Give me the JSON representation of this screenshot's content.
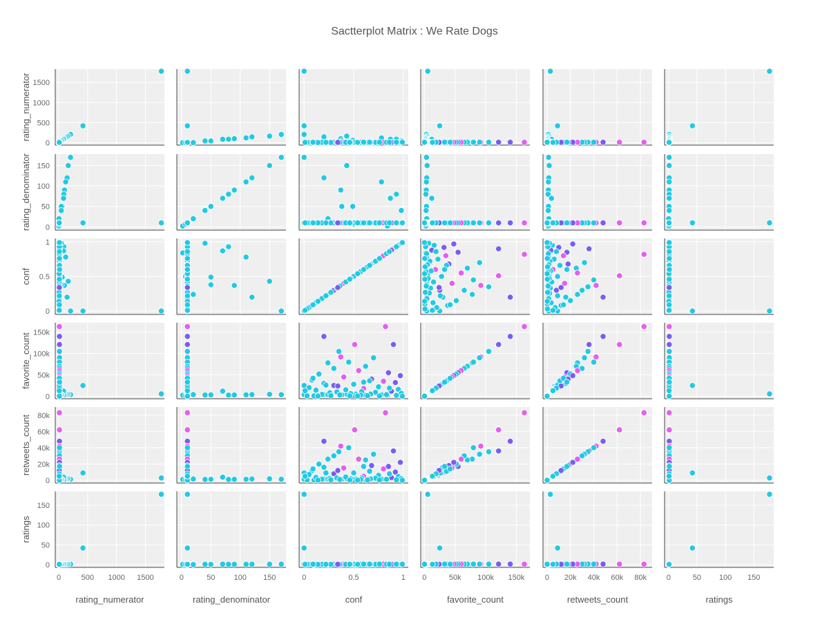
{
  "chart_data": {
    "type": "scatter",
    "title": "Sactterplot Matrix : We Rate Dogs",
    "variables": [
      {
        "key": "rating_numerator",
        "label": "rating_numerator",
        "range": [
          -60,
          1830
        ],
        "ticks": [
          0,
          500,
          1000,
          1500
        ],
        "tick_labels": [
          "0",
          "500",
          "1000",
          "1500"
        ]
      },
      {
        "key": "rating_denominator",
        "label": "rating_denominator",
        "range": [
          -8,
          178
        ],
        "ticks": [
          0,
          50,
          100,
          150
        ],
        "tick_labels": [
          "0",
          "50",
          "100",
          "150"
        ]
      },
      {
        "key": "conf",
        "label": "conf",
        "range": [
          -0.05,
          1.05
        ],
        "ticks": [
          0,
          0.5,
          1
        ],
        "tick_labels": [
          "0",
          "0.5",
          "1"
        ]
      },
      {
        "key": "favorite_count",
        "label": "favorite_count",
        "range": [
          -6000,
          172000
        ],
        "ticks": [
          0,
          50000,
          100000,
          150000
        ],
        "tick_labels": [
          "0",
          "50k",
          "100k",
          "150k"
        ]
      },
      {
        "key": "retweets_count",
        "label": "retweets_count",
        "range": [
          -3500,
          90000
        ],
        "ticks": [
          0,
          20000,
          40000,
          60000,
          80000
        ],
        "tick_labels": [
          "0",
          "20k",
          "40k",
          "60k",
          "80k"
        ]
      },
      {
        "key": "ratings",
        "label": "ratings",
        "range": [
          -7,
          185
        ],
        "ticks": [
          0,
          50,
          100,
          150
        ],
        "tick_labels": [
          "0",
          "50",
          "100",
          "150"
        ]
      }
    ],
    "colors": {
      "cyan": "#22c9e3",
      "purple": "#7b5cf0",
      "magenta": "#e45ef0"
    },
    "background": "#efefef",
    "grid": true,
    "records": [
      {
        "rating_numerator": 1776,
        "rating_denominator": 10,
        "conf": 0.0,
        "favorite_count": 5500,
        "retweets_count": 2800,
        "ratings": 177.6,
        "color": "cyan"
      },
      {
        "rating_numerator": 420,
        "rating_denominator": 10,
        "conf": 0.0,
        "favorite_count": 25000,
        "retweets_count": 9000,
        "ratings": 42,
        "color": "cyan"
      },
      {
        "rating_numerator": 204,
        "rating_denominator": 170,
        "conf": 0.0,
        "favorite_count": 3500,
        "retweets_count": 1300,
        "ratings": 1.2,
        "color": "cyan"
      },
      {
        "rating_numerator": 165,
        "rating_denominator": 150,
        "conf": 0.43,
        "favorite_count": 4500,
        "retweets_count": 1800,
        "ratings": 1.1,
        "color": "cyan"
      },
      {
        "rating_numerator": 144,
        "rating_denominator": 120,
        "conf": 0.2,
        "favorite_count": 3800,
        "retweets_count": 1500,
        "ratings": 1.2,
        "color": "cyan"
      },
      {
        "rating_numerator": 121,
        "rating_denominator": 110,
        "conf": 0.78,
        "favorite_count": 3200,
        "retweets_count": 1200,
        "ratings": 1.1,
        "color": "cyan"
      },
      {
        "rating_numerator": 99,
        "rating_denominator": 90,
        "conf": 0.37,
        "favorite_count": 3000,
        "retweets_count": 1100,
        "ratings": 1.1,
        "color": "cyan"
      },
      {
        "rating_numerator": 88,
        "rating_denominator": 80,
        "conf": 0.93,
        "favorite_count": 2500,
        "retweets_count": 900,
        "ratings": 1.1,
        "color": "cyan"
      },
      {
        "rating_numerator": 84,
        "rating_denominator": 70,
        "conf": 0.87,
        "favorite_count": 12000,
        "retweets_count": 3800,
        "ratings": 1.2,
        "color": "cyan"
      },
      {
        "rating_numerator": 60,
        "rating_denominator": 50,
        "conf": 0.49,
        "favorite_count": 3000,
        "retweets_count": 1000,
        "ratings": 1.2,
        "color": "cyan"
      },
      {
        "rating_numerator": 45,
        "rating_denominator": 50,
        "conf": 0.38,
        "favorite_count": 3300,
        "retweets_count": 1200,
        "ratings": 0.9,
        "color": "cyan"
      },
      {
        "rating_numerator": 44,
        "rating_denominator": 40,
        "conf": 0.98,
        "favorite_count": 2800,
        "retweets_count": 1000,
        "ratings": 1.1,
        "color": "cyan"
      },
      {
        "rating_numerator": 24,
        "rating_denominator": 11,
        "conf": 0.62,
        "favorite_count": 2200,
        "retweets_count": 700,
        "ratings": 2.2,
        "color": "cyan"
      },
      {
        "rating_numerator": 9,
        "rating_denominator": 11,
        "conf": 0.52,
        "favorite_count": 5000,
        "retweets_count": 1600,
        "ratings": 0.8,
        "color": "cyan"
      },
      {
        "rating_numerator": 4,
        "rating_denominator": 20,
        "conf": 0.24,
        "favorite_count": 3800,
        "retweets_count": 1500,
        "ratings": 0.2,
        "color": "cyan"
      },
      {
        "rating_numerator": 1,
        "rating_denominator": 2,
        "conf": 0.84,
        "favorite_count": 2200,
        "retweets_count": 900,
        "ratings": 0.5,
        "color": "cyan"
      },
      {
        "rating_numerator": 0,
        "rating_denominator": 10,
        "conf": 0.1,
        "favorite_count": 800,
        "retweets_count": 300,
        "ratings": 0,
        "color": "cyan"
      },
      {
        "rating_numerator": 5,
        "rating_denominator": 7,
        "conf": 0.5,
        "favorite_count": 1500,
        "retweets_count": 500,
        "ratings": 0.7,
        "color": "cyan"
      },
      {
        "rating_numerator": 12,
        "rating_denominator": 10,
        "conf": 0.82,
        "favorite_count": 163000,
        "retweets_count": 83000,
        "ratings": 1.2,
        "color": "magenta"
      },
      {
        "rating_numerator": 13,
        "rating_denominator": 10,
        "conf": 0.2,
        "favorite_count": 140000,
        "retweets_count": 48000,
        "ratings": 1.3,
        "color": "purple"
      },
      {
        "rating_numerator": 13,
        "rating_denominator": 10,
        "conf": 0.51,
        "favorite_count": 121000,
        "retweets_count": 62000,
        "ratings": 1.3,
        "color": "magenta"
      },
      {
        "rating_numerator": 13,
        "rating_denominator": 10,
        "conf": 0.9,
        "favorite_count": 121000,
        "retweets_count": 36000,
        "ratings": 1.3,
        "color": "purple"
      },
      {
        "rating_numerator": 13,
        "rating_denominator": 10,
        "conf": 0.37,
        "favorite_count": 92000,
        "retweets_count": 42000,
        "ratings": 1.3,
        "color": "magenta"
      },
      {
        "rating_numerator": 13,
        "rating_denominator": 10,
        "conf": 0.35,
        "favorite_count": 105000,
        "retweets_count": 35000,
        "ratings": 1.3,
        "color": "cyan"
      },
      {
        "rating_numerator": 14,
        "rating_denominator": 10,
        "conf": 0.7,
        "favorite_count": 90000,
        "retweets_count": 32000,
        "ratings": 1.4,
        "color": "cyan"
      },
      {
        "rating_numerator": 12,
        "rating_denominator": 10,
        "conf": 0.24,
        "favorite_count": 78000,
        "retweets_count": 26000,
        "ratings": 1.2,
        "color": "cyan"
      },
      {
        "rating_numerator": 13,
        "rating_denominator": 10,
        "conf": 0.45,
        "favorite_count": 80000,
        "retweets_count": 40000,
        "ratings": 1.3,
        "color": "cyan"
      },
      {
        "rating_numerator": 12,
        "rating_denominator": 10,
        "conf": 0.62,
        "favorite_count": 70000,
        "retweets_count": 25000,
        "ratings": 1.2,
        "color": "cyan"
      },
      {
        "rating_numerator": 13,
        "rating_denominator": 10,
        "conf": 0.3,
        "favorite_count": 65000,
        "retweets_count": 30000,
        "ratings": 1.3,
        "color": "cyan"
      },
      {
        "rating_numerator": 13,
        "rating_denominator": 10,
        "conf": 0.55,
        "favorite_count": 60000,
        "retweets_count": 26000,
        "ratings": 1.3,
        "color": "magenta"
      },
      {
        "rating_numerator": 13,
        "rating_denominator": 10,
        "conf": 0.85,
        "favorite_count": 55000,
        "retweets_count": 17000,
        "ratings": 1.3,
        "color": "purple"
      },
      {
        "rating_numerator": 12,
        "rating_denominator": 10,
        "conf": 0.15,
        "favorite_count": 52000,
        "retweets_count": 20000,
        "ratings": 1.2,
        "color": "cyan"
      },
      {
        "rating_numerator": 13,
        "rating_denominator": 10,
        "conf": 0.97,
        "favorite_count": 48000,
        "retweets_count": 22000,
        "ratings": 1.3,
        "color": "purple"
      },
      {
        "rating_numerator": 12,
        "rating_denominator": 10,
        "conf": 0.4,
        "favorite_count": 45000,
        "retweets_count": 15000,
        "ratings": 1.2,
        "color": "magenta"
      },
      {
        "rating_numerator": 11,
        "rating_denominator": 10,
        "conf": 0.68,
        "favorite_count": 40000,
        "retweets_count": 18000,
        "ratings": 1.1,
        "color": "purple"
      },
      {
        "rating_numerator": 12,
        "rating_denominator": 10,
        "conf": 0.08,
        "favorite_count": 38000,
        "retweets_count": 12000,
        "ratings": 1.2,
        "color": "cyan"
      },
      {
        "rating_numerator": 13,
        "rating_denominator": 10,
        "conf": 0.8,
        "favorite_count": 35000,
        "retweets_count": 14000,
        "ratings": 1.3,
        "color": "magenta"
      },
      {
        "rating_numerator": 12,
        "rating_denominator": 10,
        "conf": 0.92,
        "favorite_count": 32000,
        "retweets_count": 10000,
        "ratings": 1.2,
        "color": "purple"
      },
      {
        "rating_numerator": 11,
        "rating_denominator": 10,
        "conf": 0.2,
        "favorite_count": 30000,
        "retweets_count": 16000,
        "ratings": 1.1,
        "color": "cyan"
      },
      {
        "rating_numerator": 12,
        "rating_denominator": 10,
        "conf": 0.5,
        "favorite_count": 28000,
        "retweets_count": 9000,
        "ratings": 1.2,
        "color": "cyan"
      },
      {
        "rating_numerator": 10,
        "rating_denominator": 10,
        "conf": 0.3,
        "favorite_count": 25000,
        "retweets_count": 8000,
        "ratings": 1.0,
        "color": "purple"
      },
      {
        "rating_numerator": 12,
        "rating_denominator": 10,
        "conf": 0.75,
        "favorite_count": 22000,
        "retweets_count": 6000,
        "ratings": 1.2,
        "color": "cyan"
      },
      {
        "rating_numerator": 11,
        "rating_denominator": 10,
        "conf": 0.05,
        "favorite_count": 20000,
        "retweets_count": 7000,
        "ratings": 1.1,
        "color": "cyan"
      },
      {
        "rating_numerator": 12,
        "rating_denominator": 10,
        "conf": 0.6,
        "favorite_count": 18000,
        "retweets_count": 5000,
        "ratings": 1.2,
        "color": "magenta"
      },
      {
        "rating_numerator": 10,
        "rating_denominator": 10,
        "conf": 0.95,
        "favorite_count": 16000,
        "retweets_count": 4500,
        "ratings": 1.0,
        "color": "cyan"
      },
      {
        "rating_numerator": 11,
        "rating_denominator": 10,
        "conf": 0.42,
        "favorite_count": 15000,
        "retweets_count": 4000,
        "ratings": 1.1,
        "color": "cyan"
      },
      {
        "rating_numerator": 12,
        "rating_denominator": 10,
        "conf": 0.12,
        "favorite_count": 14000,
        "retweets_count": 3500,
        "ratings": 1.2,
        "color": "cyan"
      },
      {
        "rating_numerator": 10,
        "rating_denominator": 10,
        "conf": 0.88,
        "favorite_count": 12000,
        "retweets_count": 3200,
        "ratings": 1.0,
        "color": "purple"
      },
      {
        "rating_numerator": 11,
        "rating_denominator": 10,
        "conf": 0.58,
        "favorite_count": 11000,
        "retweets_count": 3000,
        "ratings": 1.1,
        "color": "cyan"
      },
      {
        "rating_numerator": 12,
        "rating_denominator": 10,
        "conf": 0.33,
        "favorite_count": 10000,
        "retweets_count": 2800,
        "ratings": 1.2,
        "color": "cyan"
      },
      {
        "rating_numerator": 9,
        "rating_denominator": 10,
        "conf": 0.72,
        "favorite_count": 9000,
        "retweets_count": 2500,
        "ratings": 0.9,
        "color": "cyan"
      },
      {
        "rating_numerator": 10,
        "rating_denominator": 10,
        "conf": 0.26,
        "favorite_count": 8000,
        "retweets_count": 2200,
        "ratings": 1.0,
        "color": "cyan"
      },
      {
        "rating_numerator": 11,
        "rating_denominator": 10,
        "conf": 0.98,
        "favorite_count": 7000,
        "retweets_count": 2000,
        "ratings": 1.1,
        "color": "cyan"
      },
      {
        "rating_numerator": 8,
        "rating_denominator": 10,
        "conf": 0.47,
        "favorite_count": 6000,
        "retweets_count": 1800,
        "ratings": 0.8,
        "color": "cyan"
      },
      {
        "rating_numerator": 10,
        "rating_denominator": 10,
        "conf": 0.67,
        "favorite_count": 5000,
        "retweets_count": 1500,
        "ratings": 1.0,
        "color": "cyan"
      },
      {
        "rating_numerator": 9,
        "rating_denominator": 10,
        "conf": 0.18,
        "favorite_count": 4000,
        "retweets_count": 1300,
        "ratings": 0.9,
        "color": "cyan"
      },
      {
        "rating_numerator": 11,
        "rating_denominator": 10,
        "conf": 0.83,
        "favorite_count": 3500,
        "retweets_count": 1100,
        "ratings": 1.1,
        "color": "cyan"
      },
      {
        "rating_numerator": 7,
        "rating_denominator": 10,
        "conf": 0.36,
        "favorite_count": 3000,
        "retweets_count": 900,
        "ratings": 0.7,
        "color": "cyan"
      },
      {
        "rating_numerator": 10,
        "rating_denominator": 10,
        "conf": 0.57,
        "favorite_count": 2500,
        "retweets_count": 800,
        "ratings": 1.0,
        "color": "cyan"
      },
      {
        "rating_numerator": 12,
        "rating_denominator": 10,
        "conf": 0.93,
        "favorite_count": 2000,
        "retweets_count": 600,
        "ratings": 1.2,
        "color": "cyan"
      },
      {
        "rating_numerator": 6,
        "rating_denominator": 10,
        "conf": 0.27,
        "favorite_count": 1500,
        "retweets_count": 500,
        "ratings": 0.6,
        "color": "cyan"
      },
      {
        "rating_numerator": 9,
        "rating_denominator": 10,
        "conf": 0.64,
        "favorite_count": 1200,
        "retweets_count": 400,
        "ratings": 0.9,
        "color": "cyan"
      },
      {
        "rating_numerator": 10,
        "rating_denominator": 10,
        "conf": 0.03,
        "favorite_count": 1000,
        "retweets_count": 300,
        "ratings": 1.0,
        "color": "cyan"
      },
      {
        "rating_numerator": 11,
        "rating_denominator": 10,
        "conf": 0.46,
        "favorite_count": 800,
        "retweets_count": 250,
        "ratings": 1.1,
        "color": "cyan"
      },
      {
        "rating_numerator": 13,
        "rating_denominator": 10,
        "conf": 0.76,
        "favorite_count": 600,
        "retweets_count": 200,
        "ratings": 1.3,
        "color": "cyan"
      },
      {
        "rating_numerator": 5,
        "rating_denominator": 10,
        "conf": 0.14,
        "favorite_count": 400,
        "retweets_count": 150,
        "ratings": 0.5,
        "color": "cyan"
      },
      {
        "rating_numerator": 8,
        "rating_denominator": 10,
        "conf": 0.54,
        "favorite_count": 300,
        "retweets_count": 100,
        "ratings": 0.8,
        "color": "cyan"
      },
      {
        "rating_numerator": 12,
        "rating_denominator": 10,
        "conf": 0.99,
        "favorite_count": 200,
        "retweets_count": 80,
        "ratings": 1.2,
        "color": "cyan"
      },
      {
        "rating_numerator": 10,
        "rating_denominator": 10,
        "conf": 0.22,
        "favorite_count": 26000,
        "retweets_count": 9000,
        "ratings": 1.0,
        "color": "cyan"
      },
      {
        "rating_numerator": 13,
        "rating_denominator": 10,
        "conf": 0.66,
        "favorite_count": 36000,
        "retweets_count": 11000,
        "ratings": 1.3,
        "color": "cyan"
      },
      {
        "rating_numerator": 12,
        "rating_denominator": 10,
        "conf": 0.09,
        "favorite_count": 42000,
        "retweets_count": 14000,
        "ratings": 1.2,
        "color": "cyan"
      },
      {
        "rating_numerator": 11,
        "rating_denominator": 10,
        "conf": 0.34,
        "favorite_count": 24000,
        "retweets_count": 12000,
        "ratings": 1.1,
        "color": "purple"
      },
      {
        "rating_numerator": 14,
        "rating_denominator": 10,
        "conf": 0.6,
        "favorite_count": 33000,
        "retweets_count": 17000,
        "ratings": 1.4,
        "color": "cyan"
      },
      {
        "rating_numerator": 12,
        "rating_denominator": 10,
        "conf": 0.86,
        "favorite_count": 19000,
        "retweets_count": 8000,
        "ratings": 1.2,
        "color": "cyan"
      },
      {
        "rating_numerator": 9,
        "rating_denominator": 10,
        "conf": 0.01,
        "favorite_count": 13000,
        "retweets_count": 5000,
        "ratings": 0.9,
        "color": "cyan"
      }
    ]
  }
}
